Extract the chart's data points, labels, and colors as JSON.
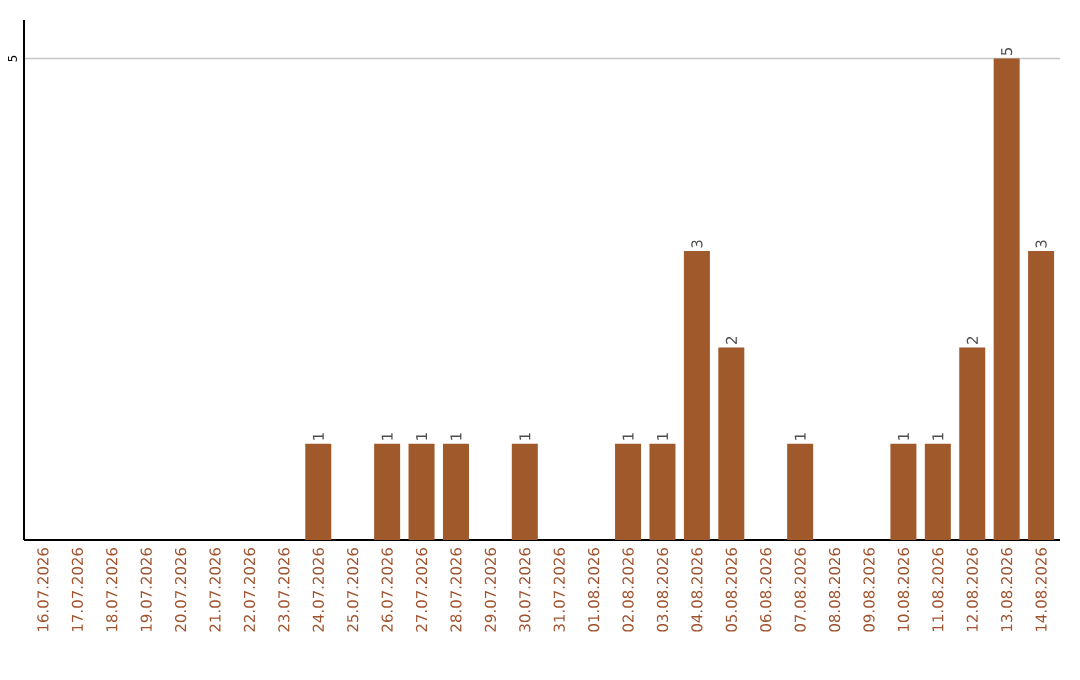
{
  "chart_data": {
    "type": "bar",
    "categories": [
      "16.07.2026",
      "17.07.2026",
      "18.07.2026",
      "19.07.2026",
      "20.07.2026",
      "21.07.2026",
      "22.07.2026",
      "23.07.2026",
      "24.07.2026",
      "25.07.2026",
      "26.07.2026",
      "27.07.2026",
      "28.07.2026",
      "29.07.2026",
      "30.07.2026",
      "31.07.2026",
      "01.08.2026",
      "02.08.2026",
      "03.08.2026",
      "04.08.2026",
      "05.08.2026",
      "06.08.2026",
      "07.08.2026",
      "08.08.2026",
      "09.08.2026",
      "10.08.2026",
      "11.08.2026",
      "12.08.2026",
      "13.08.2026",
      "14.08.2026"
    ],
    "values": [
      0,
      0,
      0,
      0,
      0,
      0,
      0,
      0,
      1,
      0,
      1,
      1,
      1,
      0,
      1,
      0,
      0,
      1,
      1,
      3,
      2,
      0,
      1,
      0,
      0,
      1,
      1,
      2,
      5,
      3
    ],
    "value_labels": [
      null,
      null,
      null,
      null,
      null,
      null,
      null,
      null,
      "1",
      null,
      "1",
      "1",
      "1",
      null,
      "1",
      null,
      null,
      "1",
      "1",
      "3",
      "2",
      null,
      "1",
      null,
      null,
      "1",
      "1",
      "2",
      "5",
      "3"
    ],
    "color": "#a0592a",
    "ylim": [
      0,
      5.4
    ],
    "yticks": [
      5
    ],
    "grid": "y"
  }
}
